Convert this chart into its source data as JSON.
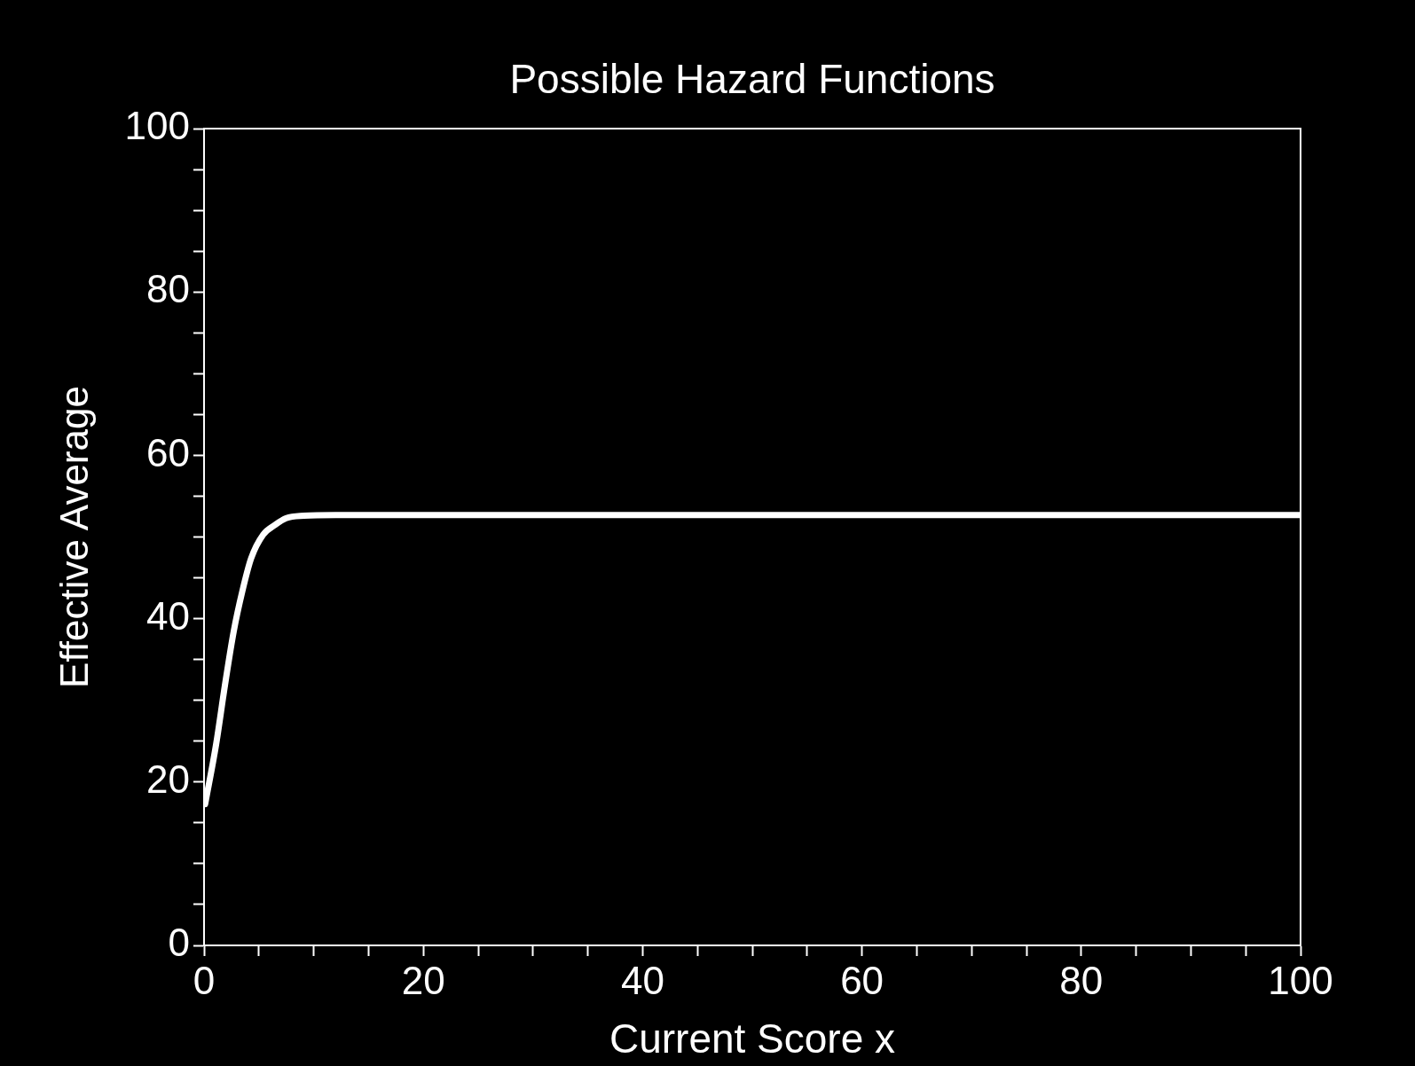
{
  "chart_data": {
    "type": "line",
    "title": "Possible Hazard Functions",
    "xlabel": "Current Score x",
    "ylabel": "Effective Average",
    "x": [
      0.1,
      1.1,
      1.9,
      2.7,
      3.5,
      4.3,
      5.4,
      6.5,
      7.5,
      9.1,
      12,
      20,
      40,
      60,
      80,
      100
    ],
    "series": [
      {
        "color": "#ffffff",
        "values": [
          17.3,
          24.6,
          31.8,
          38.4,
          43.4,
          47.4,
          50.3,
          51.5,
          52.3,
          52.6,
          52.7,
          52.7,
          52.7,
          52.7,
          52.7,
          52.7
        ]
      }
    ],
    "xlim": [
      0,
      100
    ],
    "ylim": [
      0,
      100
    ],
    "xticks": [
      0,
      {
        "value": 5,
        "label": null
      },
      {
        "value": 10,
        "label": null
      },
      {
        "value": 15,
        "label": null
      },
      20,
      {
        "value": 25,
        "label": null
      },
      {
        "value": 30,
        "label": null
      },
      {
        "value": 35,
        "label": null
      },
      40,
      {
        "value": 45,
        "label": null
      },
      {
        "value": 50,
        "label": null
      },
      {
        "value": 55,
        "label": null
      },
      60,
      {
        "value": 65,
        "label": null
      },
      {
        "value": 70,
        "label": null
      },
      {
        "value": 75,
        "label": null
      },
      80,
      {
        "value": 85,
        "label": null
      },
      {
        "value": 90,
        "label": null
      },
      {
        "value": 95,
        "label": null
      },
      100
    ],
    "yticks": [
      0,
      {
        "value": 5,
        "label": null
      },
      {
        "value": 10,
        "label": null
      },
      {
        "value": 15,
        "label": null
      },
      20,
      {
        "value": 25,
        "label": null
      },
      {
        "value": 30,
        "label": null
      },
      {
        "value": 35,
        "label": null
      },
      40,
      {
        "value": 45,
        "label": null
      },
      {
        "value": 50,
        "label": null
      },
      {
        "value": 55,
        "label": null
      },
      60,
      {
        "value": 65,
        "label": null
      },
      {
        "value": 70,
        "label": null
      },
      {
        "value": 75,
        "label": null
      },
      80,
      {
        "value": 85,
        "label": null
      },
      {
        "value": 90,
        "label": null
      },
      {
        "value": 95,
        "label": null
      },
      100
    ]
  }
}
